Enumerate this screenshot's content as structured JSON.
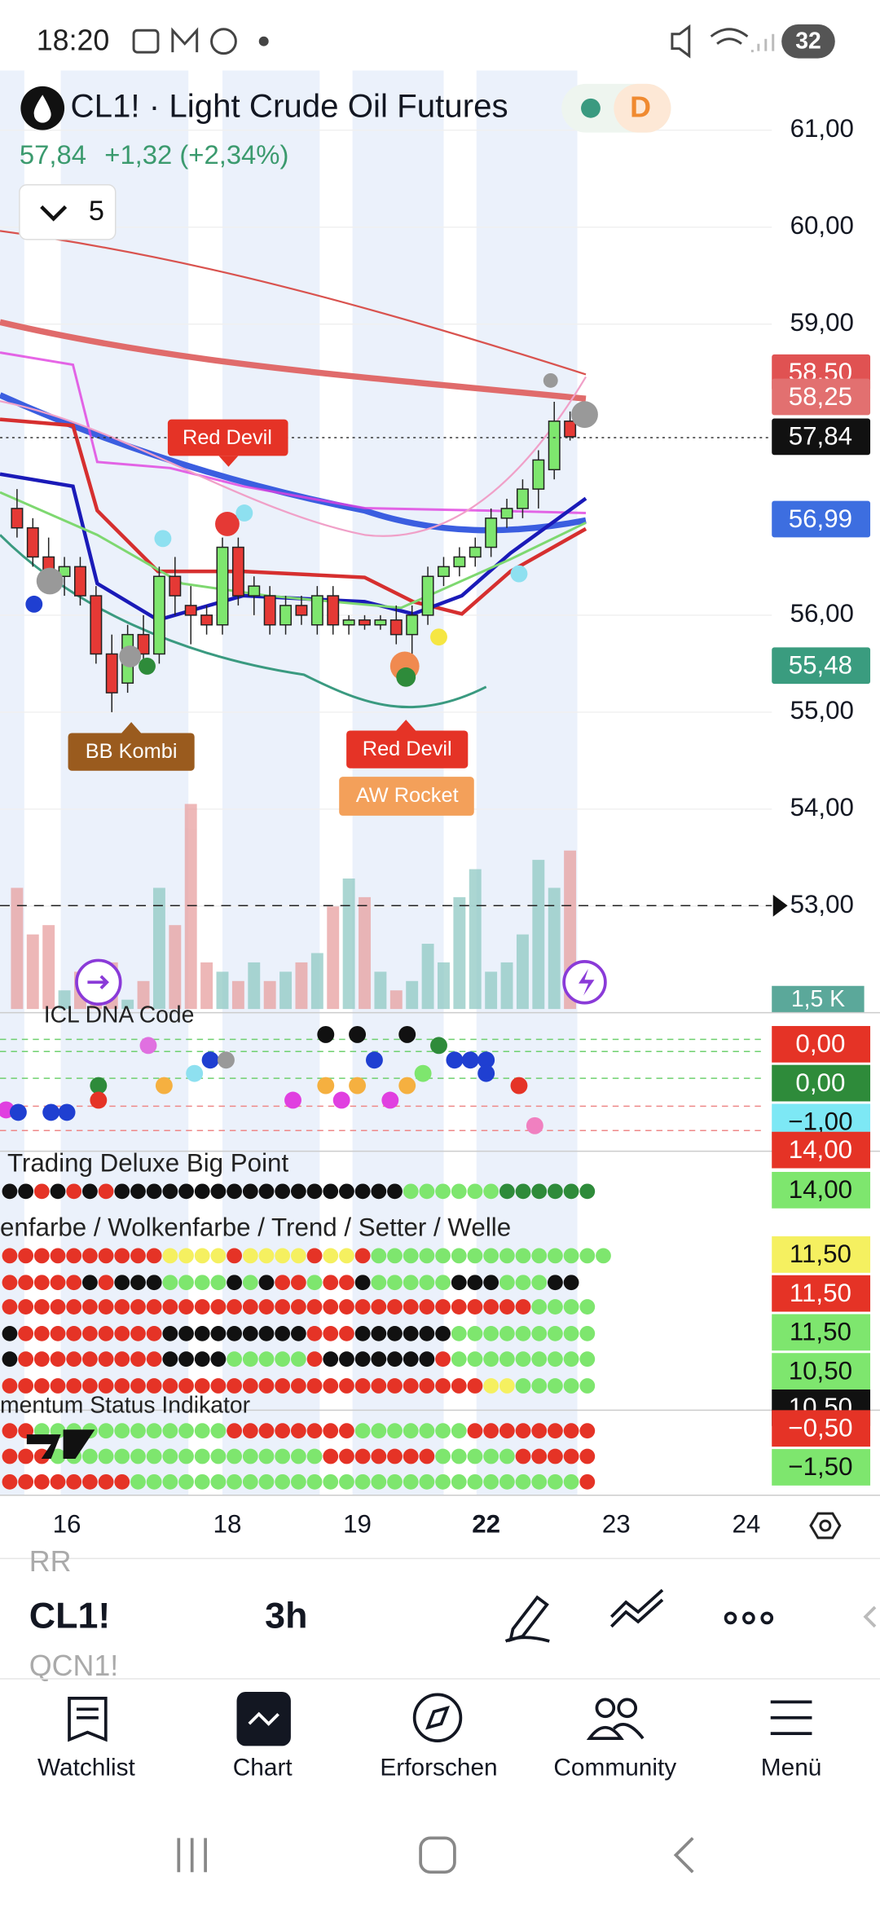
{
  "status_bar": {
    "time": "18:20",
    "battery": "32"
  },
  "header": {
    "symbol_title": "CL1! · Light Crude Oil Futures",
    "badge": "D",
    "price": "57,84",
    "change": "+1,32 (+2,34%)",
    "indicator_count": "5"
  },
  "chart_data": {
    "type": "candlestick",
    "ylim": [
      51.94,
      61.59
    ],
    "yticks": [
      {
        "value": 61,
        "label": "61,00"
      },
      {
        "value": 60,
        "label": "60,00"
      },
      {
        "value": 59,
        "label": "59,00"
      },
      {
        "value": 56,
        "label": "56,00"
      },
      {
        "value": 55,
        "label": "55,00"
      },
      {
        "value": 54,
        "label": "54,00"
      },
      {
        "value": 53,
        "label": "53,00"
      }
    ],
    "open": [
      57.1,
      56.9,
      56.6,
      56.4,
      56.5,
      56.2,
      55.6,
      55.3,
      55.8,
      55.6,
      56.4,
      56.1,
      56.0,
      55.9,
      56.7,
      56.2,
      56.2,
      55.9,
      56.1,
      55.9,
      56.2,
      55.9,
      55.95,
      55.9,
      55.95,
      55.8,
      56.0,
      56.4,
      56.5,
      56.6,
      56.7,
      57.0,
      57.1,
      57.3,
      57.5,
      58.0
    ],
    "high": [
      57.3,
      57.0,
      56.8,
      56.6,
      56.6,
      56.3,
      55.8,
      55.9,
      56.0,
      56.5,
      56.6,
      56.3,
      56.1,
      56.8,
      56.8,
      56.4,
      56.3,
      56.2,
      56.2,
      56.3,
      56.3,
      56.0,
      56.0,
      56.0,
      56.1,
      56.1,
      56.5,
      56.6,
      56.7,
      56.8,
      57.1,
      57.2,
      57.4,
      57.7,
      58.2,
      58.1
    ],
    "low": [
      56.8,
      56.5,
      56.3,
      56.2,
      56.1,
      55.5,
      55.0,
      55.2,
      55.5,
      55.5,
      56.0,
      55.7,
      55.8,
      55.8,
      56.1,
      56.0,
      55.8,
      55.8,
      55.9,
      55.8,
      55.8,
      55.8,
      55.85,
      55.85,
      55.7,
      55.5,
      55.9,
      56.3,
      56.4,
      56.5,
      56.6,
      56.9,
      57.0,
      57.1,
      57.4,
      57.8
    ],
    "close": [
      56.9,
      56.6,
      56.4,
      56.5,
      56.2,
      55.6,
      55.2,
      55.8,
      55.6,
      56.4,
      56.2,
      56.0,
      55.9,
      56.7,
      56.2,
      56.3,
      55.9,
      56.1,
      56.0,
      56.2,
      55.9,
      55.95,
      55.9,
      55.95,
      55.8,
      56.0,
      56.4,
      56.5,
      56.6,
      56.7,
      57.0,
      57.1,
      57.3,
      57.6,
      58.0,
      57.84
    ],
    "price_tags": [
      {
        "value": 58.5,
        "label": "58,50"
      },
      {
        "value": 58.25,
        "label": "58,25"
      },
      {
        "value": 57.84,
        "label": "57,84"
      },
      {
        "value": 56.99,
        "label": "56,99"
      },
      {
        "value": 55.48,
        "label": "55,48"
      }
    ],
    "annotations": [
      "Red Devil",
      "BB Kombi",
      "Red Devil",
      "AW Rocket"
    ],
    "x_labels": [
      "16",
      "18",
      "19",
      "22",
      "23",
      "24"
    ],
    "volume": {
      "label": "1,5 K",
      "ylim": [
        0,
        3
      ],
      "values": [
        1.3,
        0.8,
        0.9,
        0.2,
        0.4,
        0.3,
        0.5,
        0.1,
        0.3,
        1.3,
        0.9,
        2.2,
        0.5,
        0.4,
        0.3,
        0.5,
        0.3,
        0.4,
        0.5,
        0.6,
        1.1,
        1.4,
        1.2,
        0.4,
        0.2,
        0.3,
        0.7,
        0.5,
        1.2,
        1.5,
        0.4,
        0.5,
        0.8,
        1.6,
        1.3,
        1.7
      ]
    }
  },
  "indicators": [
    {
      "title": "ICL DNA Code",
      "values": [
        "0,00",
        "0,00",
        "−1,00"
      ]
    },
    {
      "title": "Trading Deluxe Big Point",
      "values": [
        "14,00",
        "14,00"
      ]
    },
    {
      "title": "enfarbe / Wolkenfarbe / Trend / Setter / Welle",
      "values": [
        "11,50",
        "11,50",
        "11,50",
        "10,50",
        "10,50"
      ]
    },
    {
      "title": "mentum Status Indikator",
      "values": [
        "−0,50",
        "−1,50"
      ]
    }
  ],
  "toolbar": {
    "symbol_above": "RR",
    "symbol": "CL1!",
    "interval": "3h",
    "symbol_below": "QCN1!"
  },
  "nav": [
    "Watchlist",
    "Chart",
    "Erforschen",
    "Community",
    "Menü"
  ]
}
